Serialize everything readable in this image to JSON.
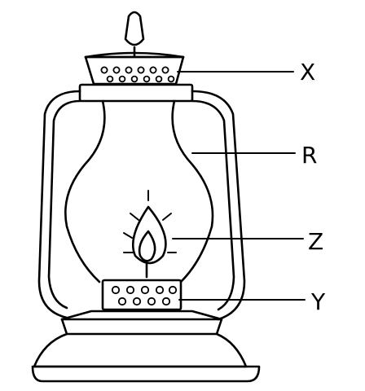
{
  "labels": {
    "x": "X",
    "r": "R",
    "z": "Z",
    "y": "Y"
  },
  "colors": {
    "ink": "#000000",
    "background": "#ffffff"
  }
}
